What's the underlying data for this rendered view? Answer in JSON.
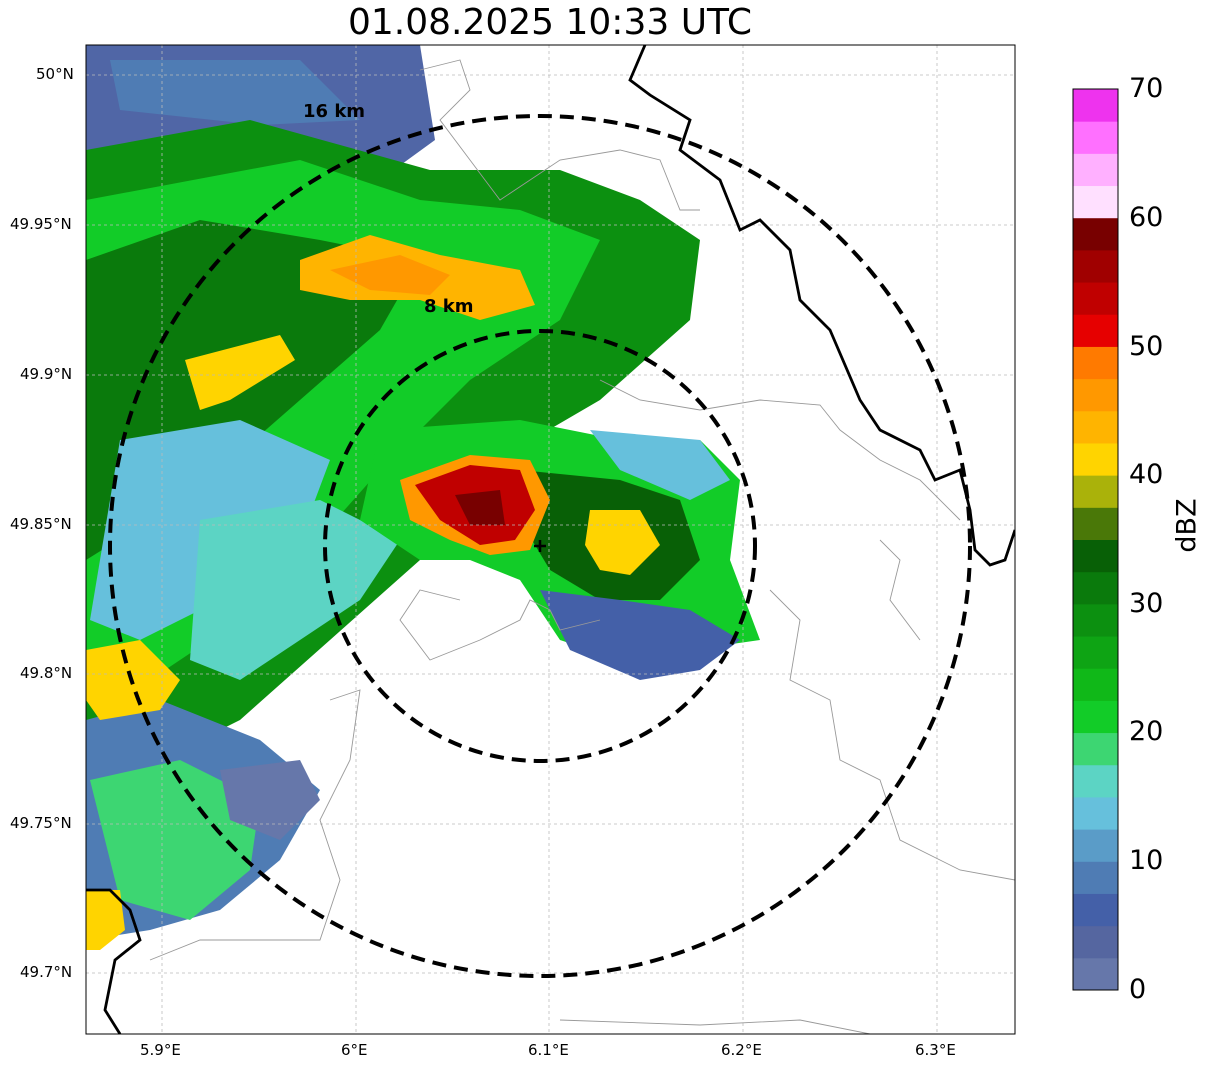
{
  "title": "01.08.2025 10:33 UTC",
  "lat_ticks": [
    "50°N",
    "49.95°N",
    "49.9°N",
    "49.85°N",
    "49.8°N",
    "49.75°N",
    "49.7°N"
  ],
  "lon_ticks": [
    "5.9°E",
    "6°E",
    "6.1°E",
    "6.2°E",
    "6.3°E"
  ],
  "range_rings": [
    {
      "label": "8 km"
    },
    {
      "label": "16 km"
    }
  ],
  "colorbar": {
    "unit": "dBZ",
    "ticks": [
      "0",
      "10",
      "20",
      "30",
      "40",
      "50",
      "60",
      "70"
    ],
    "colors": [
      "#6677aa",
      "#5566a0",
      "#4460a8",
      "#4f7cb4",
      "#5a9cc8",
      "#66c0dc",
      "#5cd4c4",
      "#3dd672",
      "#12cc28",
      "#10b818",
      "#0ea414",
      "#0c9010",
      "#0a7a0c",
      "#086006",
      "#4a7808",
      "#aab20a",
      "#ffd400",
      "#ffb400",
      "#ff9800",
      "#ff7a00",
      "#e60000",
      "#c00000",
      "#a00000",
      "#780000",
      "#ffe0ff",
      "#ffb0ff",
      "#ff70ff",
      "#ee33ee"
    ]
  },
  "colors": {
    "ring": "#000000",
    "border": "#000000",
    "admin": "#999999",
    "grid": "#bbbbbb"
  }
}
